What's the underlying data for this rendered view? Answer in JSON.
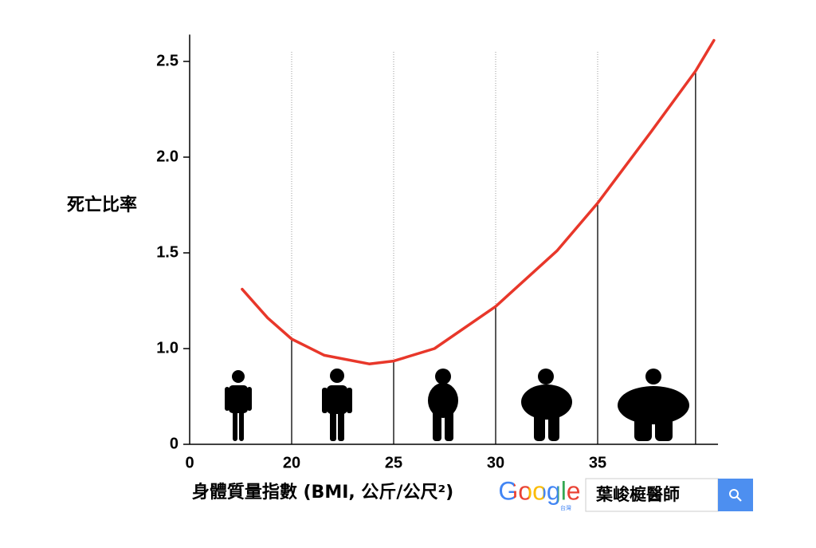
{
  "chart_data": {
    "type": "line",
    "y_label": "死亡比率",
    "x_label": "身體質量指數 (BMI, 公斤/公尺²)",
    "x": [
      10.3,
      15.3,
      20,
      21.6,
      23.8,
      25,
      27.0,
      30,
      33.0,
      35,
      37.6,
      39.8,
      40.7
    ],
    "values": [
      1.31,
      1.16,
      1.05,
      0.93,
      0.84,
      0.87,
      1.0,
      1.22,
      1.51,
      1.76,
      2.13,
      2.45,
      2.61
    ],
    "color": "#e8372a",
    "drop_lines": {
      "x": [
        20,
        25,
        30,
        35,
        39.8
      ],
      "values": [
        1.05,
        0.87,
        1.22,
        1.76,
        2.45
      ]
    },
    "xlim": [
      0,
      40.9
    ],
    "xticks": [
      0,
      20,
      25,
      30,
      35
    ],
    "ylim": [
      0,
      2.64
    ],
    "yticks": [
      {
        "value": 0,
        "label": "0"
      },
      {
        "value": 1,
        "label": "1.0"
      },
      {
        "value": 1.5,
        "label": "1.5"
      },
      {
        "value": 2,
        "label": "2.0"
      },
      {
        "value": 2.5,
        "label": "2.5"
      }
    ],
    "grid": true
  },
  "search_widget": {
    "logo": "Google",
    "logo_sub": "台灣",
    "query": "葉峻榳醫師"
  }
}
